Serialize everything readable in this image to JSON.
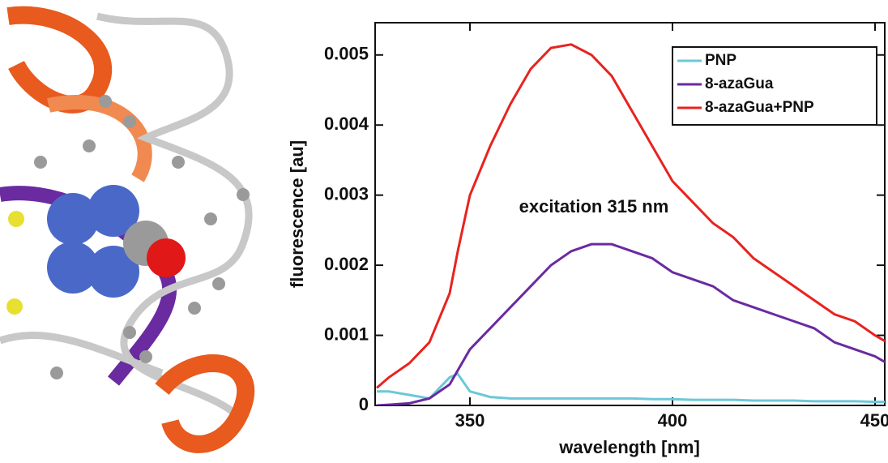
{
  "chart_data": {
    "type": "line",
    "xlabel": "wavelength [nm]",
    "ylabel": "fluorescence [au]",
    "annotation": "excitation 315 nm",
    "x": [
      327,
      330,
      335,
      340,
      345,
      347,
      350,
      355,
      360,
      365,
      370,
      375,
      380,
      385,
      390,
      395,
      400,
      405,
      410,
      415,
      420,
      425,
      430,
      435,
      440,
      445,
      450,
      453
    ],
    "series": [
      {
        "name": "PNP",
        "color": "#6cc8d8",
        "values": [
          0.0002,
          0.0002,
          0.00015,
          0.0001,
          0.0004,
          0.00045,
          0.0002,
          0.00012,
          0.0001,
          0.0001,
          0.0001,
          0.0001,
          0.0001,
          0.0001,
          0.0001,
          9e-05,
          9e-05,
          8e-05,
          8e-05,
          8e-05,
          7e-05,
          7e-05,
          7e-05,
          6e-05,
          6e-05,
          6e-05,
          5e-05,
          5e-05
        ]
      },
      {
        "name": "8-azaGua",
        "color": "#6a2aa0",
        "values": [
          0,
          1e-05,
          3e-05,
          0.0001,
          0.0003,
          0.0005,
          0.0008,
          0.0011,
          0.0014,
          0.0017,
          0.002,
          0.0022,
          0.0023,
          0.0023,
          0.0022,
          0.0021,
          0.0019,
          0.0018,
          0.0017,
          0.0015,
          0.0014,
          0.0013,
          0.0012,
          0.0011,
          0.0009,
          0.0008,
          0.0007,
          0.0006
        ]
      },
      {
        "name": "8-azaGua+PNP",
        "color": "#e8231f",
        "values": [
          0.00025,
          0.0004,
          0.0006,
          0.0009,
          0.0016,
          0.0022,
          0.003,
          0.0037,
          0.0043,
          0.0048,
          0.0051,
          0.00515,
          0.005,
          0.0047,
          0.0042,
          0.0037,
          0.0032,
          0.0029,
          0.0026,
          0.0024,
          0.0021,
          0.0019,
          0.0017,
          0.0015,
          0.0013,
          0.0012,
          0.001,
          0.0009
        ]
      }
    ],
    "xlim": [
      326.6,
      452.4
    ],
    "xticks": [
      350,
      400,
      450
    ],
    "ylim": [
      0,
      0.00546
    ],
    "yticks": [
      0,
      0.001,
      0.002,
      0.003,
      0.004,
      0.005
    ],
    "legend": "upper right"
  }
}
